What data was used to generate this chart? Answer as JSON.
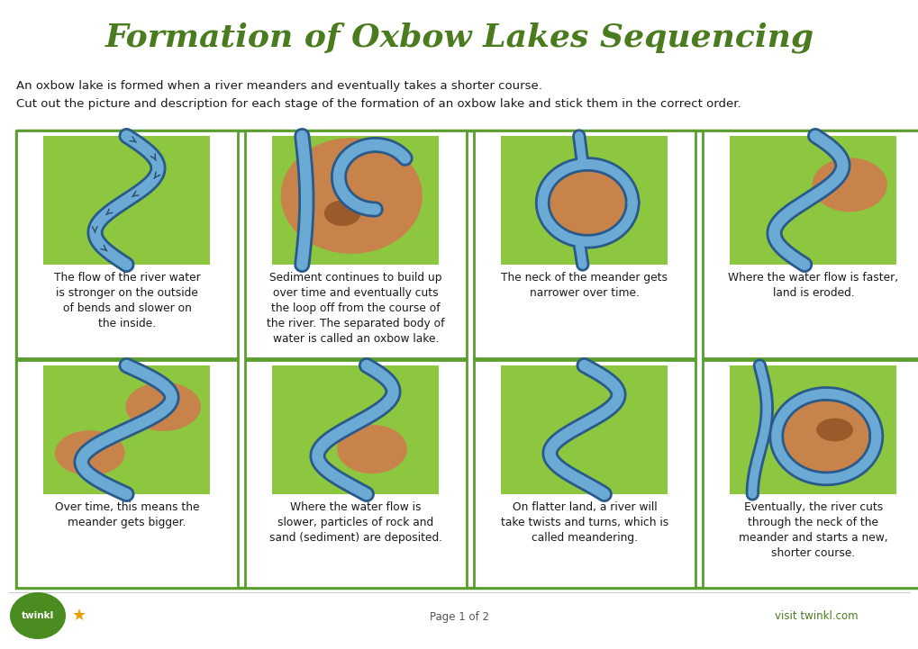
{
  "title": "Formation of Oxbow Lakes Sequencing",
  "title_color": "#4a7c1f",
  "title_fontsize": 26,
  "background_color": "#ffffff",
  "desc_line1": "An oxbow lake is formed when a river meanders and eventually takes a shorter course.",
  "desc_line2": "Cut out the picture and description for each stage of the formation of an oxbow lake and stick them in the correct order.",
  "footer_center": "Page 1 of 2",
  "footer_right": "visit twinkl.com",
  "cards": [
    {
      "row": 0,
      "col": 0,
      "text": "The flow of the river water\nis stronger on the outside\nof bends and slower on\nthe inside.",
      "river_style": "simple_meander"
    },
    {
      "row": 0,
      "col": 1,
      "text": "Sediment continues to build up\nover time and eventually cuts\nthe loop off from the course of\nthe river. The separated body of\nwater is called an oxbow lake.",
      "river_style": "sediment_heavy"
    },
    {
      "row": 0,
      "col": 2,
      "text": "The neck of the meander gets\nnarrower over time.",
      "river_style": "narrow_neck"
    },
    {
      "row": 0,
      "col": 3,
      "text": "Where the water flow is faster,\nland is eroded.",
      "river_style": "eroded"
    },
    {
      "row": 1,
      "col": 0,
      "text": "Over time, this means the\nmeander gets bigger.",
      "river_style": "bigger_meander"
    },
    {
      "row": 1,
      "col": 1,
      "text": "Where the water flow is\nslower, particles of rock and\nsand (sediment) are deposited.",
      "river_style": "deposited"
    },
    {
      "row": 1,
      "col": 2,
      "text": "On flatter land, a river will\ntake twists and turns, which is\ncalled meandering.",
      "river_style": "flat_meander"
    },
    {
      "row": 1,
      "col": 3,
      "text": "Eventually, the river cuts\nthrough the neck of the\nmeander and starts a new,\nshorter course.",
      "river_style": "cuts_through"
    }
  ],
  "card_border_color": "#5a9e2f",
  "text_color": "#1a1a1a",
  "green_bg": "#8dc63f",
  "river_blue": "#6aaad4",
  "river_dark": "#3a7ab8",
  "river_outline": "#2a5a8a",
  "sediment_color": "#c8834a",
  "sediment_dark": "#9a5a2a"
}
